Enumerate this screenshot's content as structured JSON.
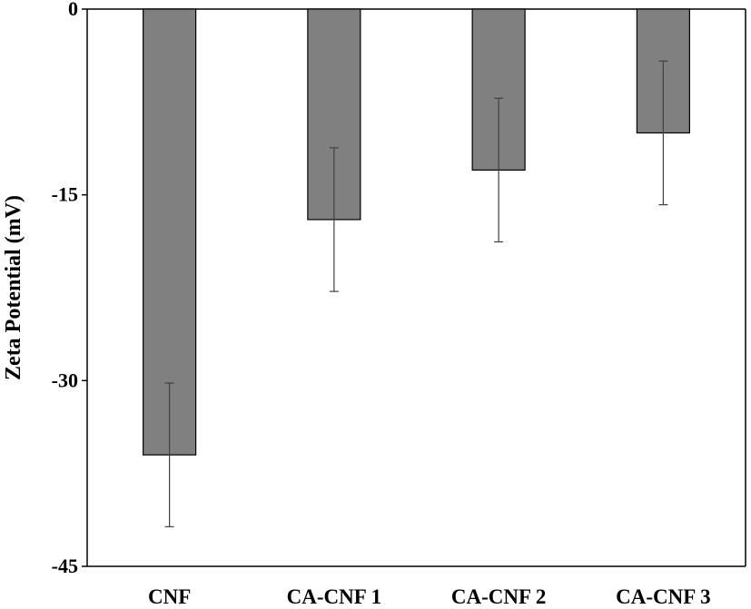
{
  "chart_data": {
    "type": "bar",
    "title": "",
    "xlabel": "",
    "ylabel": "Zeta Potential (mV)",
    "categories": [
      "CNF",
      "CA-CNF 1",
      "CA-CNF 2",
      "CA-CNF 3"
    ],
    "values": [
      -36,
      -17,
      -13,
      -10
    ],
    "errors": [
      5.8,
      5.8,
      5.8,
      5.8
    ],
    "ylim": [
      -45,
      0
    ],
    "yticks": [
      "0",
      "-15",
      "-30",
      "-45"
    ],
    "grid": false,
    "legend": "none",
    "colors": {
      "bar_fill": "#808080",
      "bar_stroke": "#000000",
      "error_bar": "#404040",
      "axis": "#000000"
    }
  }
}
